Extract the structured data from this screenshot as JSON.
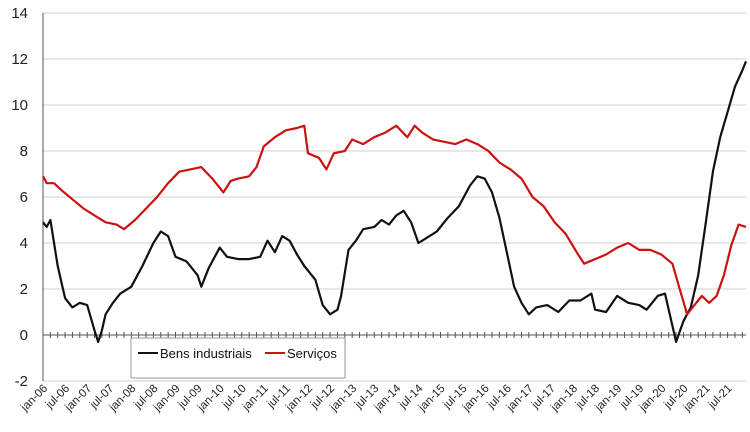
{
  "chart_data": {
    "type": "line",
    "ylim": [
      -2,
      14
    ],
    "yticks": [
      -2,
      0,
      2,
      4,
      6,
      8,
      10,
      12,
      14
    ],
    "xlim": [
      "2006-01",
      "2021-12"
    ],
    "xtick_labels": [
      "jan-06",
      "jul-06",
      "jan-07",
      "jul-07",
      "jan-08",
      "jul-08",
      "jan-09",
      "jul-09",
      "jan-10",
      "jul-10",
      "jan-11",
      "jul-11",
      "jan-12",
      "jul-12",
      "jan-13",
      "jul-13",
      "jan-14",
      "jul-14",
      "jan-15",
      "jul-15",
      "jan-16",
      "jul-16",
      "jan-17",
      "jul-17",
      "jan-18",
      "jul-18",
      "jan-19",
      "jul-19",
      "jan-20",
      "jul-20",
      "jan-21",
      "jul-21"
    ],
    "grid": "horizontal",
    "legend_position": "bottom-center",
    "series": [
      {
        "name": "Bens industriais",
        "color": "#111111",
        "points": [
          [
            "2006-01",
            4.9
          ],
          [
            "2006-02",
            4.7
          ],
          [
            "2006-03",
            5.0
          ],
          [
            "2006-05",
            3.0
          ],
          [
            "2006-07",
            1.6
          ],
          [
            "2006-09",
            1.2
          ],
          [
            "2006-11",
            1.4
          ],
          [
            "2007-01",
            1.3
          ],
          [
            "2007-03",
            0.2
          ],
          [
            "2007-04",
            -0.3
          ],
          [
            "2007-05",
            0.2
          ],
          [
            "2007-06",
            0.9
          ],
          [
            "2007-08",
            1.4
          ],
          [
            "2007-10",
            1.8
          ],
          [
            "2008-01",
            2.1
          ],
          [
            "2008-04",
            3.0
          ],
          [
            "2008-07",
            4.0
          ],
          [
            "2008-09",
            4.5
          ],
          [
            "2008-11",
            4.3
          ],
          [
            "2009-01",
            3.4
          ],
          [
            "2009-04",
            3.2
          ],
          [
            "2009-07",
            2.6
          ],
          [
            "2009-08",
            2.1
          ],
          [
            "2009-10",
            2.9
          ],
          [
            "2010-01",
            3.8
          ],
          [
            "2010-03",
            3.4
          ],
          [
            "2010-06",
            3.3
          ],
          [
            "2010-09",
            3.3
          ],
          [
            "2010-12",
            3.4
          ],
          [
            "2011-02",
            4.1
          ],
          [
            "2011-04",
            3.6
          ],
          [
            "2011-06",
            4.3
          ],
          [
            "2011-08",
            4.1
          ],
          [
            "2011-10",
            3.5
          ],
          [
            "2011-12",
            3.0
          ],
          [
            "2012-03",
            2.4
          ],
          [
            "2012-05",
            1.3
          ],
          [
            "2012-07",
            0.9
          ],
          [
            "2012-09",
            1.1
          ],
          [
            "2012-10",
            1.7
          ],
          [
            "2012-12",
            3.7
          ],
          [
            "2013-02",
            4.1
          ],
          [
            "2013-04",
            4.6
          ],
          [
            "2013-07",
            4.7
          ],
          [
            "2013-09",
            5.0
          ],
          [
            "2013-11",
            4.8
          ],
          [
            "2014-01",
            5.2
          ],
          [
            "2014-03",
            5.4
          ],
          [
            "2014-05",
            4.9
          ],
          [
            "2014-07",
            4.0
          ],
          [
            "2014-09",
            4.2
          ],
          [
            "2014-12",
            4.5
          ],
          [
            "2015-03",
            5.1
          ],
          [
            "2015-06",
            5.6
          ],
          [
            "2015-09",
            6.5
          ],
          [
            "2015-11",
            6.9
          ],
          [
            "2016-01",
            6.8
          ],
          [
            "2016-03",
            6.2
          ],
          [
            "2016-05",
            5.1
          ],
          [
            "2016-07",
            3.6
          ],
          [
            "2016-09",
            2.1
          ],
          [
            "2016-11",
            1.4
          ],
          [
            "2017-01",
            0.9
          ],
          [
            "2017-03",
            1.2
          ],
          [
            "2017-06",
            1.3
          ],
          [
            "2017-09",
            1.0
          ],
          [
            "2017-12",
            1.5
          ],
          [
            "2018-03",
            1.5
          ],
          [
            "2018-06",
            1.8
          ],
          [
            "2018-07",
            1.1
          ],
          [
            "2018-10",
            1.0
          ],
          [
            "2019-01",
            1.7
          ],
          [
            "2019-04",
            1.4
          ],
          [
            "2019-07",
            1.3
          ],
          [
            "2019-09",
            1.1
          ],
          [
            "2019-12",
            1.7
          ],
          [
            "2020-02",
            1.8
          ],
          [
            "2020-04",
            0.4
          ],
          [
            "2020-05",
            -0.3
          ],
          [
            "2020-07",
            0.6
          ],
          [
            "2020-09",
            1.2
          ],
          [
            "2020-11",
            2.6
          ],
          [
            "2021-01",
            4.8
          ],
          [
            "2021-03",
            7.1
          ],
          [
            "2021-05",
            8.6
          ],
          [
            "2021-07",
            9.7
          ],
          [
            "2021-09",
            10.8
          ],
          [
            "2021-11",
            11.5
          ],
          [
            "2021-12",
            11.9
          ]
        ]
      },
      {
        "name": "Serviços",
        "color": "#cc1111",
        "points": [
          [
            "2006-01",
            6.9
          ],
          [
            "2006-02",
            6.6
          ],
          [
            "2006-04",
            6.6
          ],
          [
            "2006-06",
            6.3
          ],
          [
            "2006-09",
            5.9
          ],
          [
            "2006-12",
            5.5
          ],
          [
            "2007-03",
            5.2
          ],
          [
            "2007-06",
            4.9
          ],
          [
            "2007-09",
            4.8
          ],
          [
            "2007-11",
            4.6
          ],
          [
            "2008-02",
            5.0
          ],
          [
            "2008-05",
            5.5
          ],
          [
            "2008-08",
            6.0
          ],
          [
            "2008-11",
            6.6
          ],
          [
            "2009-02",
            7.1
          ],
          [
            "2009-05",
            7.2
          ],
          [
            "2009-08",
            7.3
          ],
          [
            "2009-11",
            6.8
          ],
          [
            "2010-02",
            6.2
          ],
          [
            "2010-04",
            6.7
          ],
          [
            "2010-06",
            6.8
          ],
          [
            "2010-09",
            6.9
          ],
          [
            "2010-11",
            7.3
          ],
          [
            "2011-01",
            8.2
          ],
          [
            "2011-04",
            8.6
          ],
          [
            "2011-07",
            8.9
          ],
          [
            "2011-10",
            9.0
          ],
          [
            "2011-12",
            9.1
          ],
          [
            "2012-01",
            7.9
          ],
          [
            "2012-04",
            7.7
          ],
          [
            "2012-06",
            7.2
          ],
          [
            "2012-08",
            7.9
          ],
          [
            "2012-11",
            8.0
          ],
          [
            "2013-01",
            8.5
          ],
          [
            "2013-04",
            8.3
          ],
          [
            "2013-07",
            8.6
          ],
          [
            "2013-10",
            8.8
          ],
          [
            "2014-01",
            9.1
          ],
          [
            "2014-04",
            8.6
          ],
          [
            "2014-06",
            9.1
          ],
          [
            "2014-08",
            8.8
          ],
          [
            "2014-11",
            8.5
          ],
          [
            "2015-02",
            8.4
          ],
          [
            "2015-05",
            8.3
          ],
          [
            "2015-08",
            8.5
          ],
          [
            "2015-11",
            8.3
          ],
          [
            "2016-02",
            8.0
          ],
          [
            "2016-05",
            7.5
          ],
          [
            "2016-08",
            7.2
          ],
          [
            "2016-11",
            6.8
          ],
          [
            "2017-02",
            6.0
          ],
          [
            "2017-05",
            5.6
          ],
          [
            "2017-08",
            4.9
          ],
          [
            "2017-11",
            4.4
          ],
          [
            "2018-02",
            3.6
          ],
          [
            "2018-04",
            3.1
          ],
          [
            "2018-07",
            3.3
          ],
          [
            "2018-10",
            3.5
          ],
          [
            "2019-01",
            3.8
          ],
          [
            "2019-04",
            4.0
          ],
          [
            "2019-07",
            3.7
          ],
          [
            "2019-10",
            3.7
          ],
          [
            "2020-01",
            3.5
          ],
          [
            "2020-04",
            3.1
          ],
          [
            "2020-06",
            2.0
          ],
          [
            "2020-08",
            0.9
          ],
          [
            "2020-10",
            1.3
          ],
          [
            "2020-12",
            1.7
          ],
          [
            "2021-02",
            1.4
          ],
          [
            "2021-04",
            1.7
          ],
          [
            "2021-06",
            2.6
          ],
          [
            "2021-08",
            3.9
          ],
          [
            "2021-10",
            4.8
          ],
          [
            "2021-12",
            4.7
          ]
        ]
      }
    ]
  }
}
